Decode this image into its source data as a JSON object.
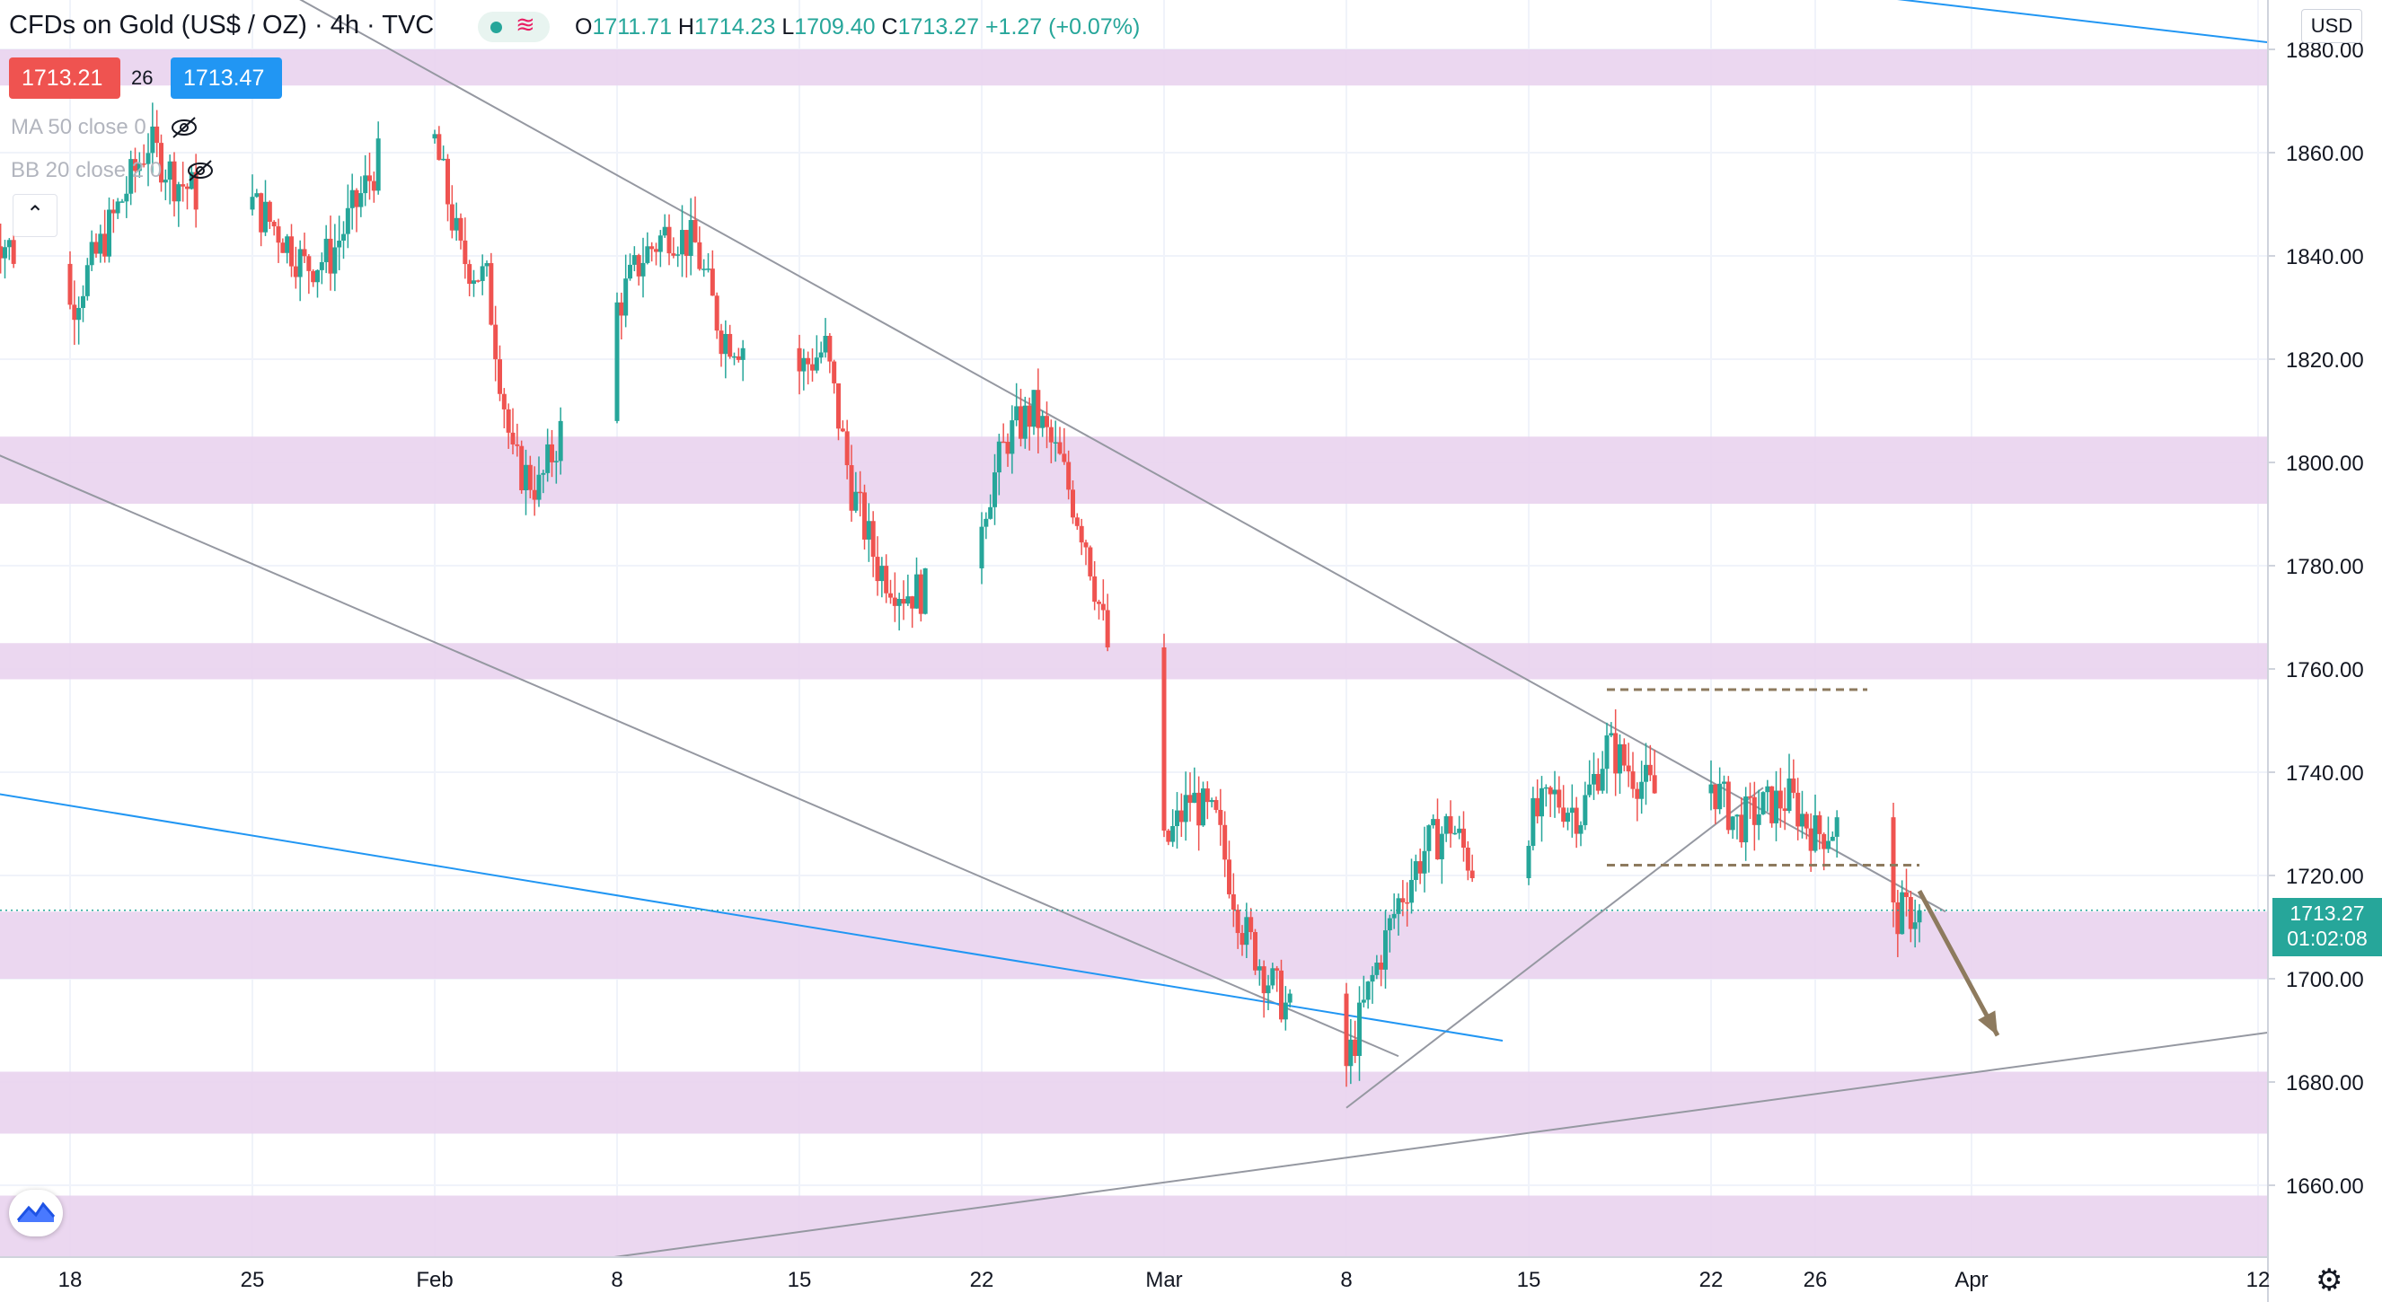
{
  "header": {
    "symbol_title": "CFDs on Gold (US$ / OZ) · 4h · TVC",
    "ohlc": {
      "o_label": "O",
      "o": "1711.71",
      "h_label": "H",
      "h": "1714.23",
      "l_label": "L",
      "l": "1709.40",
      "c_label": "C",
      "c": "1713.27",
      "change": "+1.27 (+0.07%)"
    }
  },
  "trade": {
    "sell_price": "1713.21",
    "spread": "26",
    "buy_price": "1713.47"
  },
  "indicators": [
    {
      "label": "MA 50 close 0"
    },
    {
      "label": "BB 20 close 2 0"
    }
  ],
  "currency_button": "USD",
  "last_price": {
    "price": "1713.27",
    "countdown": "01:02:08"
  },
  "icons": {
    "collapse": "chevron-up-icon",
    "logo": "tradingview-logo-icon",
    "settings": "gear-icon",
    "visibility": "eye-off-icon"
  },
  "colors": {
    "up": "#26a69a",
    "down": "#ef5350",
    "zone": "#e9d3ee",
    "blue_line": "#2196f3",
    "trend_line": "#9598a1",
    "arrow": "#8d7a5e"
  },
  "chart_data": {
    "type": "candlestick",
    "title": "CFDs on Gold (US$ / OZ) · 4h · TVC",
    "ylabel": "USD",
    "ylim": [
      1645,
      1890
    ],
    "y_ticks": [
      1660,
      1680,
      1700,
      1720,
      1740,
      1760,
      1780,
      1800,
      1820,
      1840,
      1860,
      1880
    ],
    "x_tick_labels": [
      "18",
      "25",
      "Feb",
      "8",
      "15",
      "22",
      "Mar",
      "8",
      "15",
      "22",
      "26",
      "Apr",
      "12"
    ],
    "x_tick_dates": [
      "2021-01-18",
      "2021-01-25",
      "2021-02-01",
      "2021-02-08",
      "2021-02-15",
      "2021-02-22",
      "2021-03-01",
      "2021-03-08",
      "2021-03-15",
      "2021-03-22",
      "2021-03-26",
      "2021-04-01",
      "2021-04-12"
    ],
    "last_close": 1713.27,
    "series_close_path": [
      [
        "2021-01-15",
        1845
      ],
      [
        "2021-01-18",
        1830
      ],
      [
        "2021-01-19",
        1840
      ],
      [
        "2021-01-21",
        1862
      ],
      [
        "2021-01-22",
        1855
      ],
      [
        "2021-01-24",
        1848
      ],
      [
        "2021-01-25",
        1850
      ],
      [
        "2021-01-26",
        1845
      ],
      [
        "2021-01-27",
        1838
      ],
      [
        "2021-01-28",
        1840
      ],
      [
        "2021-01-29",
        1850
      ],
      [
        "2021-01-30",
        1860
      ],
      [
        "2021-02-01",
        1862
      ],
      [
        "2021-02-02",
        1840
      ],
      [
        "2021-02-03",
        1835
      ],
      [
        "2021-02-04",
        1800
      ],
      [
        "2021-02-05",
        1795
      ],
      [
        "2021-02-06",
        1808
      ],
      [
        "2021-02-08",
        1830
      ],
      [
        "2021-02-09",
        1840
      ],
      [
        "2021-02-10",
        1845
      ],
      [
        "2021-02-11",
        1842
      ],
      [
        "2021-02-12",
        1825
      ],
      [
        "2021-02-14",
        1820
      ],
      [
        "2021-02-15",
        1818
      ],
      [
        "2021-02-16",
        1822
      ],
      [
        "2021-02-17",
        1795
      ],
      [
        "2021-02-18",
        1780
      ],
      [
        "2021-02-19",
        1775
      ],
      [
        "2021-02-20",
        1775
      ],
      [
        "2021-02-21",
        1775
      ],
      [
        "2021-02-22",
        1790
      ],
      [
        "2021-02-23",
        1805
      ],
      [
        "2021-02-24",
        1810
      ],
      [
        "2021-02-25",
        1800
      ],
      [
        "2021-02-26",
        1785
      ],
      [
        "2021-02-27",
        1760
      ],
      [
        "2021-02-28",
        1745
      ],
      [
        "2021-03-01",
        1725
      ],
      [
        "2021-03-02",
        1735
      ],
      [
        "2021-03-03",
        1730
      ],
      [
        "2021-03-04",
        1710
      ],
      [
        "2021-03-05",
        1700
      ],
      [
        "2021-03-06",
        1692
      ],
      [
        "2021-03-07",
        1695
      ],
      [
        "2021-03-08",
        1683
      ],
      [
        "2021-03-09",
        1700
      ],
      [
        "2021-03-10",
        1715
      ],
      [
        "2021-03-11",
        1725
      ],
      [
        "2021-03-12",
        1730
      ],
      [
        "2021-03-13",
        1720
      ],
      [
        "2021-03-14",
        1705
      ],
      [
        "2021-03-15",
        1730
      ],
      [
        "2021-03-16",
        1735
      ],
      [
        "2021-03-17",
        1732
      ],
      [
        "2021-03-18",
        1745
      ],
      [
        "2021-03-19",
        1740
      ],
      [
        "2021-03-20",
        1735
      ],
      [
        "2021-03-22",
        1738
      ],
      [
        "2021-03-23",
        1730
      ],
      [
        "2021-03-24",
        1733
      ],
      [
        "2021-03-25",
        1735
      ],
      [
        "2021-03-26",
        1728
      ],
      [
        "2021-03-27",
        1730
      ],
      [
        "2021-03-28",
        1725
      ],
      [
        "2021-03-29",
        1712
      ],
      [
        "2021-03-30",
        1713.27
      ]
    ],
    "zones": [
      {
        "from": 1873,
        "to": 1880
      },
      {
        "from": 1792,
        "to": 1805
      },
      {
        "from": 1758,
        "to": 1765
      },
      {
        "from": 1700,
        "to": 1713
      },
      {
        "from": 1670,
        "to": 1682
      },
      {
        "from": 1645,
        "to": 1658
      }
    ],
    "trend_lines": [
      {
        "kind": "descending",
        "from": [
          "2021-01-26",
          1892
        ],
        "to": [
          "2021-03-31",
          1713
        ]
      },
      {
        "kind": "descending",
        "from": [
          "2021-01-15",
          1802
        ],
        "to": [
          "2021-03-10",
          1685
        ]
      },
      {
        "kind": "rising",
        "from": [
          "2021-03-08",
          1675
        ],
        "to": [
          "2021-03-24",
          1737
        ]
      },
      {
        "kind": "rising",
        "from": [
          "2021-01-30",
          1640
        ],
        "to": [
          "2021-04-13",
          1690
        ]
      },
      {
        "kind": "blue",
        "from": [
          "2021-01-15",
          1736
        ],
        "to": [
          "2021-03-14",
          1688
        ]
      },
      {
        "kind": "blue",
        "from": [
          "2021-03-27",
          1891
        ],
        "to": [
          "2021-04-13",
          1881
        ]
      }
    ],
    "dashed_levels": [
      {
        "price": 1756,
        "from": "2021-03-18",
        "to": "2021-03-28"
      },
      {
        "price": 1722,
        "from": "2021-03-18",
        "to": "2021-03-30"
      }
    ],
    "forecast_arrow": {
      "from": [
        "2021-03-30",
        1717
      ],
      "to": [
        "2021-04-02",
        1689
      ]
    }
  }
}
